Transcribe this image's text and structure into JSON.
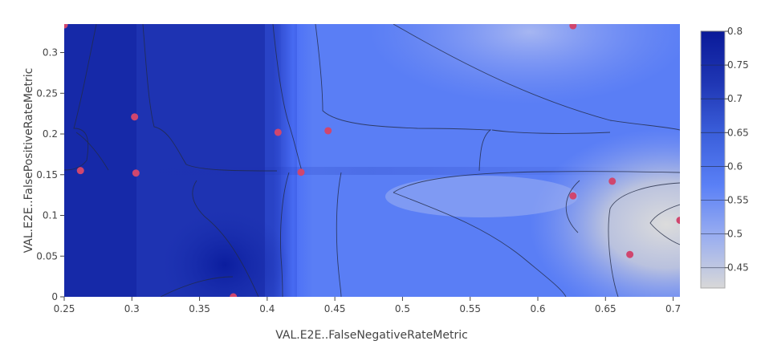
{
  "chart_data": {
    "type": "contour",
    "xlabel": "VAL.E2E..FalseNegativeRateMetric",
    "ylabel": "VAL.E2E..FalsePositiveRateMetric",
    "xlim": [
      0.25,
      0.705
    ],
    "ylim": [
      0,
      0.335
    ],
    "x_ticks": [
      "0.25",
      "0.3",
      "0.35",
      "0.4",
      "0.45",
      "0.5",
      "0.55",
      "0.6",
      "0.65",
      "0.7"
    ],
    "y_ticks": [
      "0",
      "0.05",
      "0.1",
      "0.15",
      "0.2",
      "0.25",
      "0.3"
    ],
    "colorbar": {
      "min": 0.42,
      "max": 0.8,
      "ticks": [
        "0.45",
        "0.5",
        "0.55",
        "0.6",
        "0.65",
        "0.7",
        "0.75",
        "0.8"
      ]
    },
    "colorscale": [
      "#d8d8d8",
      "#8fa6f2",
      "#5a80f6",
      "#3b5fdb",
      "#1f36b4",
      "#0a1a99"
    ],
    "marker_color": "#d0466e",
    "points": [
      {
        "x": 0.25,
        "y": 0.334
      },
      {
        "x": 0.262,
        "y": 0.155
      },
      {
        "x": 0.302,
        "y": 0.221
      },
      {
        "x": 0.303,
        "y": 0.152
      },
      {
        "x": 0.375,
        "y": 0.0
      },
      {
        "x": 0.408,
        "y": 0.202
      },
      {
        "x": 0.425,
        "y": 0.153
      },
      {
        "x": 0.445,
        "y": 0.204
      },
      {
        "x": 0.626,
        "y": 0.333
      },
      {
        "x": 0.626,
        "y": 0.124
      },
      {
        "x": 0.655,
        "y": 0.142
      },
      {
        "x": 0.668,
        "y": 0.052
      },
      {
        "x": 0.705,
        "y": 0.094
      }
    ]
  }
}
